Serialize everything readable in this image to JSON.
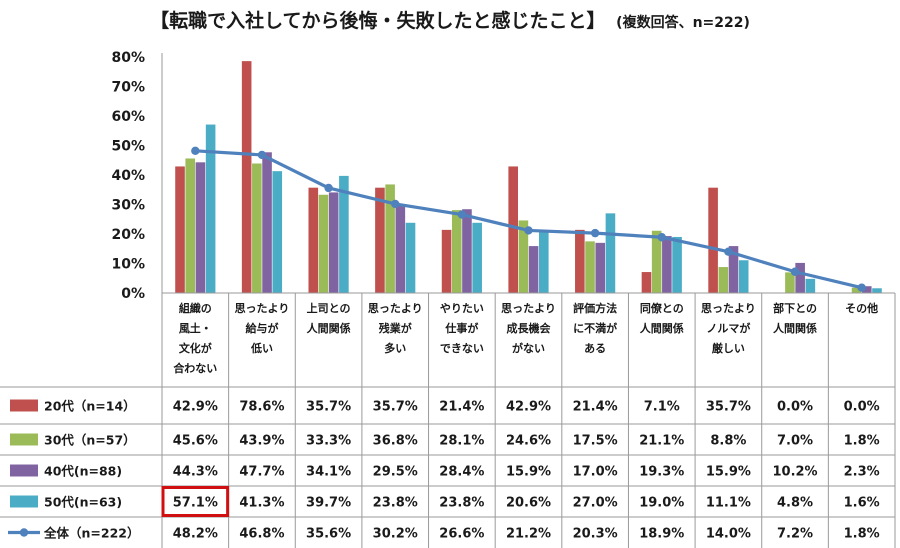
{
  "title": {
    "main": "【転職で入社してから後悔・失敗したと感じたこと】",
    "sub": "(複数回答、n=222)"
  },
  "chart_data": {
    "type": "bar",
    "title": "【転職で入社してから後悔・失敗したと感じたこと】",
    "subtitle": "(複数回答、n=222)",
    "yticks": [
      "0%",
      "10%",
      "20%",
      "30%",
      "40%",
      "50%",
      "60%",
      "70%",
      "80%"
    ],
    "ylim": [
      0,
      80
    ],
    "grid": false,
    "legend": "data-table-left",
    "categories": [
      [
        "組織の",
        "風土・",
        "文化が",
        "合わない"
      ],
      [
        "思ったより",
        "給与が",
        "低い"
      ],
      [
        "上司との",
        "人間関係"
      ],
      [
        "思ったより",
        "残業が",
        "多い"
      ],
      [
        "やりたい",
        "仕事が",
        "できない"
      ],
      [
        "思ったより",
        "成長機会",
        "がない"
      ],
      [
        "評価方法",
        "に不満が",
        "ある"
      ],
      [
        "同僚との",
        "人間関係"
      ],
      [
        "思ったより",
        "ノルマが",
        "厳しい"
      ],
      [
        "部下との",
        "人間関係"
      ],
      [
        "その他"
      ]
    ],
    "series": [
      {
        "name": "20代（n=14）",
        "type": "bar",
        "color": "#c0504d",
        "values": [
          42.9,
          78.6,
          35.7,
          35.7,
          21.4,
          42.9,
          21.4,
          7.1,
          35.7,
          0.0,
          0.0
        ],
        "labels": [
          "42.9%",
          "78.6%",
          "35.7%",
          "35.7%",
          "21.4%",
          "42.9%",
          "21.4%",
          "7.1%",
          "35.7%",
          "0.0%",
          "0.0%"
        ]
      },
      {
        "name": "30代（n=57）",
        "type": "bar",
        "color": "#9bbb59",
        "values": [
          45.6,
          43.9,
          33.3,
          36.8,
          28.1,
          24.6,
          17.5,
          21.1,
          8.8,
          7.0,
          1.8
        ],
        "labels": [
          "45.6%",
          "43.9%",
          "33.3%",
          "36.8%",
          "28.1%",
          "24.6%",
          "17.5%",
          "21.1%",
          "8.8%",
          "7.0%",
          "1.8%"
        ]
      },
      {
        "name": "40代(n=88)",
        "type": "bar",
        "color": "#8064a2",
        "values": [
          44.3,
          47.7,
          34.1,
          29.5,
          28.4,
          15.9,
          17.0,
          19.3,
          15.9,
          10.2,
          2.3
        ],
        "labels": [
          "44.3%",
          "47.7%",
          "34.1%",
          "29.5%",
          "28.4%",
          "15.9%",
          "17.0%",
          "19.3%",
          "15.9%",
          "10.2%",
          "2.3%"
        ]
      },
      {
        "name": "50代(n=63)",
        "type": "bar",
        "color": "#4bacc6",
        "values": [
          57.1,
          41.3,
          39.7,
          23.8,
          23.8,
          20.6,
          27.0,
          19.0,
          11.1,
          4.8,
          1.6
        ],
        "labels": [
          "57.1%",
          "41.3%",
          "39.7%",
          "23.8%",
          "23.8%",
          "20.6%",
          "27.0%",
          "19.0%",
          "11.1%",
          "4.8%",
          "1.6%"
        ]
      },
      {
        "name": "全体（n=222）",
        "type": "line",
        "color": "#4f81bd",
        "values": [
          48.2,
          46.8,
          35.6,
          30.2,
          26.6,
          21.2,
          20.3,
          18.9,
          14.0,
          7.2,
          1.8
        ],
        "labels": [
          "48.2%",
          "46.8%",
          "35.6%",
          "30.2%",
          "26.6%",
          "21.2%",
          "20.3%",
          "18.9%",
          "14.0%",
          "7.2%",
          "1.8%"
        ]
      }
    ],
    "highlight": {
      "series": 3,
      "category": 0,
      "color": "#d01010"
    }
  }
}
